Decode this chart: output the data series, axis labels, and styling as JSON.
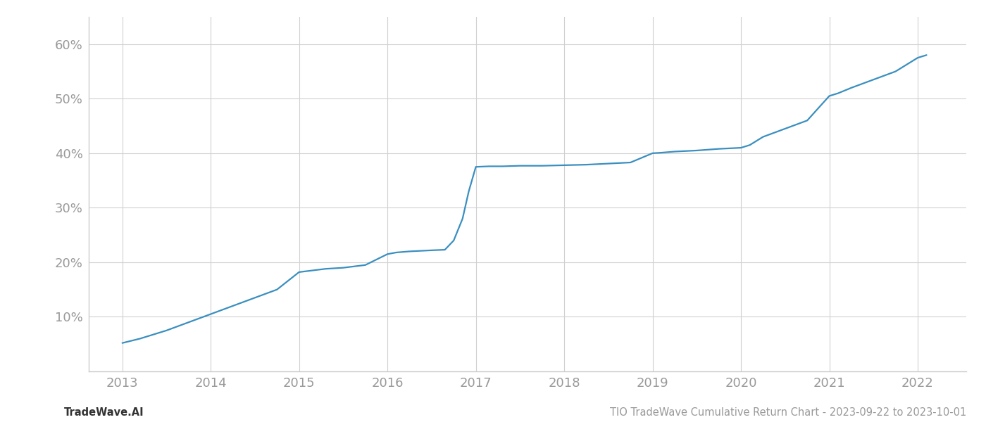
{
  "x_years": [
    2013.0,
    2013.2,
    2013.5,
    2013.75,
    2014.0,
    2014.25,
    2014.5,
    2014.75,
    2015.0,
    2015.1,
    2015.3,
    2015.5,
    2015.75,
    2016.0,
    2016.1,
    2016.25,
    2016.5,
    2016.65,
    2016.75,
    2016.85,
    2016.92,
    2017.0,
    2017.15,
    2017.3,
    2017.5,
    2017.75,
    2018.0,
    2018.25,
    2018.5,
    2018.75,
    2019.0,
    2019.1,
    2019.25,
    2019.5,
    2019.75,
    2020.0,
    2020.1,
    2020.25,
    2020.5,
    2020.75,
    2021.0,
    2021.1,
    2021.25,
    2021.5,
    2021.75,
    2022.0,
    2022.1
  ],
  "y_values": [
    5.2,
    6.0,
    7.5,
    9.0,
    10.5,
    12.0,
    13.5,
    15.0,
    18.2,
    18.4,
    18.8,
    19.0,
    19.5,
    21.5,
    21.8,
    22.0,
    22.2,
    22.3,
    24.0,
    28.0,
    33.0,
    37.5,
    37.6,
    37.6,
    37.7,
    37.7,
    37.8,
    37.9,
    38.1,
    38.3,
    40.0,
    40.1,
    40.3,
    40.5,
    40.8,
    41.0,
    41.5,
    43.0,
    44.5,
    46.0,
    50.5,
    51.0,
    52.0,
    53.5,
    55.0,
    57.5,
    58.0
  ],
  "line_color": "#3a8fc0",
  "line_width": 1.6,
  "background_color": "#ffffff",
  "grid_color": "#d0d0d0",
  "tick_label_color": "#999999",
  "xlim": [
    2012.62,
    2022.55
  ],
  "ylim": [
    0,
    65
  ],
  "yticks": [
    10,
    20,
    30,
    40,
    50,
    60
  ],
  "xticks": [
    2013,
    2014,
    2015,
    2016,
    2017,
    2018,
    2019,
    2020,
    2021,
    2022
  ],
  "footer_left": "TradeWave.AI",
  "footer_right": "TIO TradeWave Cumulative Return Chart - 2023-09-22 to 2023-10-01",
  "footer_color": "#999999",
  "footer_fontsize": 10.5,
  "tick_fontsize": 13
}
